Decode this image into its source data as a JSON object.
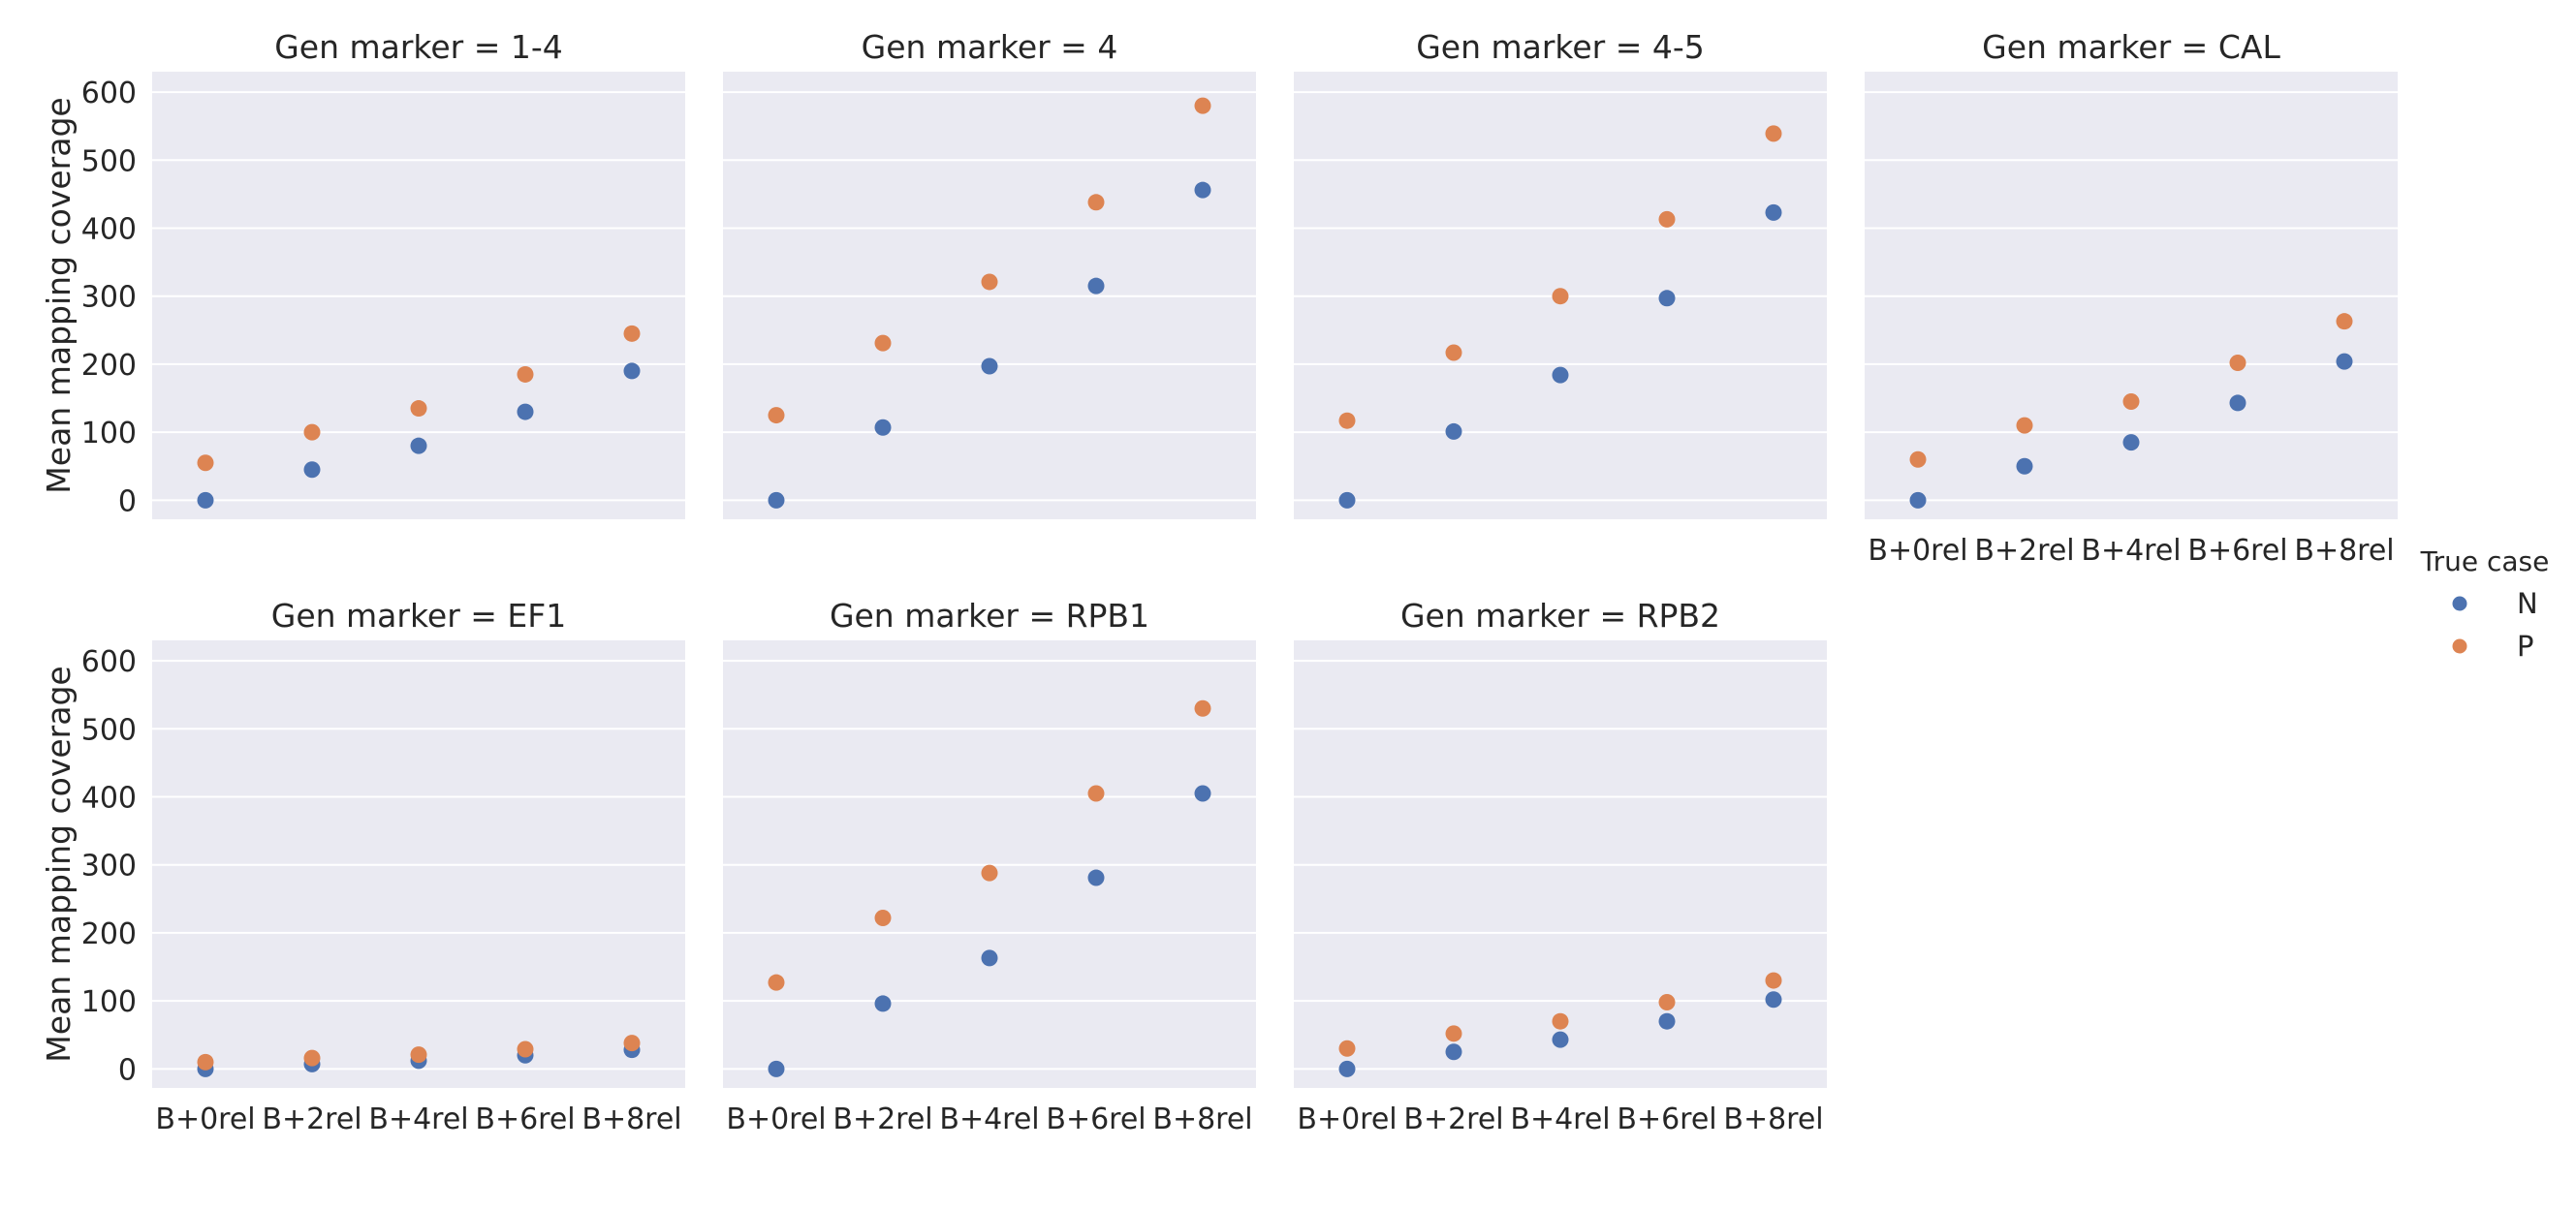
{
  "chart_data": {
    "type": "scatter",
    "ylabel": "Mean mapping coverage",
    "xlabel": "",
    "categories": [
      "B+0rel",
      "B+2rel",
      "B+4rel",
      "B+6rel",
      "B+8rel"
    ],
    "yticks": [
      0,
      100,
      200,
      300,
      400,
      500,
      600
    ],
    "ylim": [
      -28,
      630
    ],
    "grid": true,
    "legend": {
      "title": "True case",
      "placement": "right",
      "entries": [
        {
          "name": "N",
          "color": "#4c72b0"
        },
        {
          "name": "P",
          "color": "#dd8452"
        }
      ]
    },
    "panels": [
      {
        "title": "Gen marker = 1-4",
        "series": [
          {
            "name": "N",
            "values": [
              0,
              45,
              80,
              130,
              190
            ]
          },
          {
            "name": "P",
            "values": [
              55,
              100,
              135,
              185,
              245
            ]
          }
        ]
      },
      {
        "title": "Gen marker = 4",
        "series": [
          {
            "name": "N",
            "values": [
              0,
              107,
              197,
              315,
              456
            ]
          },
          {
            "name": "P",
            "values": [
              125,
              231,
              321,
              438,
              580
            ]
          }
        ]
      },
      {
        "title": "Gen marker = 4-5",
        "series": [
          {
            "name": "N",
            "values": [
              0,
              101,
              184,
              297,
              423
            ]
          },
          {
            "name": "P",
            "values": [
              117,
              217,
              300,
              413,
              539
            ]
          }
        ]
      },
      {
        "title": "Gen marker = CAL",
        "series": [
          {
            "name": "N",
            "values": [
              0,
              50,
              85,
              143,
              204
            ]
          },
          {
            "name": "P",
            "values": [
              60,
              110,
              145,
              202,
              263
            ]
          }
        ]
      },
      {
        "title": "Gen marker = EF1",
        "series": [
          {
            "name": "N",
            "values": [
              0,
              7,
              12,
              20,
              28
            ]
          },
          {
            "name": "P",
            "values": [
              10,
              16,
              21,
              29,
              38
            ]
          }
        ]
      },
      {
        "title": "Gen marker = RPB1",
        "series": [
          {
            "name": "N",
            "values": [
              0,
              96,
              163,
              281,
              405
            ]
          },
          {
            "name": "P",
            "values": [
              127,
              222,
              288,
              405,
              530
            ]
          }
        ]
      },
      {
        "title": "Gen marker = RPB2",
        "series": [
          {
            "name": "N",
            "values": [
              0,
              25,
              43,
              70,
              102
            ]
          },
          {
            "name": "P",
            "values": [
              30,
              52,
              70,
              98,
              130
            ]
          }
        ]
      }
    ]
  }
}
